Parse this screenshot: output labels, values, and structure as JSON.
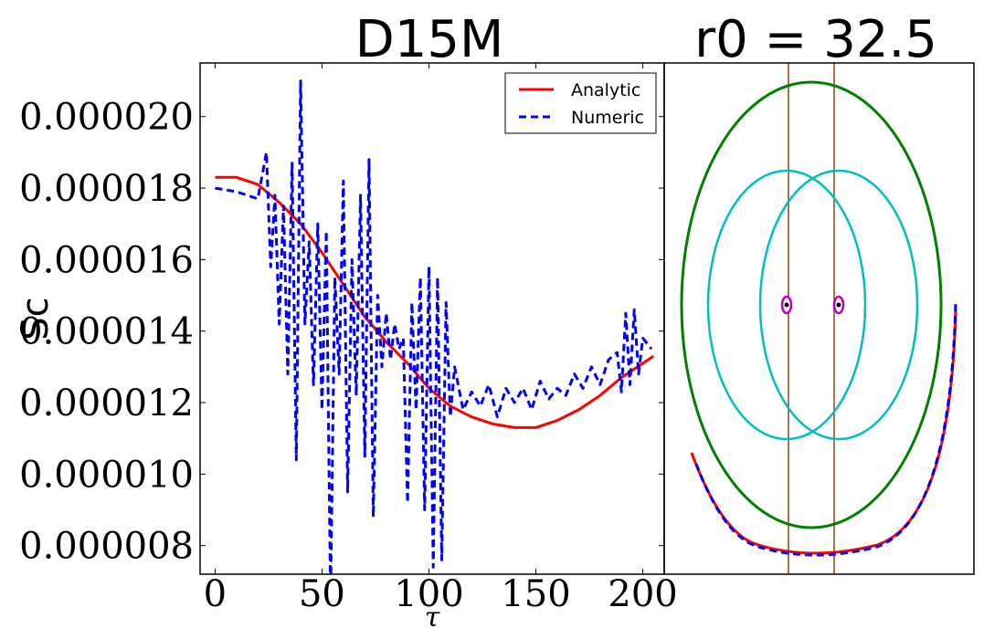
{
  "chart_data": [
    {
      "type": "line",
      "title": "D15M",
      "xlabel": "τ",
      "ylabel": "Sc",
      "xlim": [
        -7,
        210
      ],
      "ylim": [
        7.2e-06,
        2.15e-05
      ],
      "xticks": [
        0,
        50,
        100,
        150,
        200
      ],
      "xtick_labels": [
        "0",
        "50",
        "100",
        "150",
        "200"
      ],
      "yticks": [
        8e-06,
        1e-05,
        1.2e-05,
        1.4e-05,
        1.6e-05,
        1.8e-05,
        2e-05
      ],
      "ytick_labels": [
        "0.000008",
        "0.000010",
        "0.000012",
        "0.000014",
        "0.000016",
        "0.000018",
        "0.000020"
      ],
      "legend": {
        "placement": "top-right",
        "entries": [
          "Analytic",
          "Numeric"
        ]
      },
      "grid": false,
      "series": [
        {
          "name": "Analytic",
          "color": "#ff0000",
          "style": "solid",
          "x": [
            0,
            10,
            20,
            30,
            40,
            50,
            60,
            70,
            80,
            90,
            100,
            110,
            120,
            130,
            140,
            150,
            160,
            170,
            180,
            190,
            200,
            205
          ],
          "y": [
            1.83e-05,
            1.83e-05,
            1.81e-05,
            1.76e-05,
            1.7e-05,
            1.62e-05,
            1.53e-05,
            1.44e-05,
            1.37e-05,
            1.31e-05,
            1.24e-05,
            1.19e-05,
            1.16e-05,
            1.14e-05,
            1.13e-05,
            1.13e-05,
            1.15e-05,
            1.18e-05,
            1.22e-05,
            1.27e-05,
            1.31e-05,
            1.33e-05
          ]
        },
        {
          "name": "Numeric",
          "color": "#0000ff",
          "style": "dashed",
          "x": [
            0,
            10,
            20,
            24,
            26,
            28,
            30,
            32,
            34,
            36,
            38,
            40,
            42,
            44,
            46,
            48,
            50,
            52,
            54,
            56,
            58,
            60,
            62,
            64,
            66,
            68,
            70,
            72,
            74,
            76,
            78,
            80,
            82,
            84,
            86,
            88,
            90,
            92,
            94,
            96,
            98,
            100,
            102,
            104,
            106,
            108,
            110,
            112,
            116,
            120,
            124,
            128,
            132,
            136,
            140,
            144,
            148,
            152,
            156,
            160,
            164,
            168,
            172,
            176,
            180,
            184,
            188,
            190,
            192,
            194,
            196,
            198,
            200,
            204
          ],
          "y": [
            1.8e-05,
            1.79e-05,
            1.77e-05,
            1.9e-05,
            1.58e-05,
            1.78e-05,
            1.42e-05,
            1.75e-05,
            1.28e-05,
            1.87e-05,
            1.04e-05,
            2.1e-05,
            1.42e-05,
            1.65e-05,
            1.25e-05,
            1.7e-05,
            1.18e-05,
            1.68e-05,
            6.5e-06,
            1.55e-05,
            1.28e-05,
            1.82e-05,
            9.5e-06,
            1.6e-05,
            1.22e-05,
            1.78e-05,
            1.05e-05,
            1.88e-05,
            8.8e-06,
            1.5e-05,
            1.3e-05,
            1.45e-05,
            1.32e-05,
            1.42e-05,
            1.35e-05,
            1.38e-05,
            9.2e-06,
            1.48e-05,
            1.18e-05,
            1.55e-05,
            9e-06,
            1.58e-05,
            7.4e-06,
            1.55e-05,
            7.6e-06,
            1.48e-05,
            1.16e-05,
            1.3e-05,
            1.18e-05,
            1.23e-05,
            1.19e-05,
            1.25e-05,
            1.16e-05,
            1.24e-05,
            1.2e-05,
            1.24e-05,
            1.18e-05,
            1.26e-05,
            1.21e-05,
            1.24e-05,
            1.22e-05,
            1.28e-05,
            1.24e-05,
            1.3e-05,
            1.25e-05,
            1.32e-05,
            1.34e-05,
            1.23e-05,
            1.45e-05,
            1.25e-05,
            1.46e-05,
            1.28e-05,
            1.38e-05,
            1.35e-05
          ]
        }
      ]
    },
    {
      "type": "diagram",
      "title": "r0 = 32.5",
      "colors": {
        "outer": "#008000",
        "inner": "#00bfbf",
        "markers": "#bf00bf",
        "verticals": "#8b4513",
        "analytic": "#ff0000",
        "numeric": "#0000ff"
      }
    }
  ]
}
